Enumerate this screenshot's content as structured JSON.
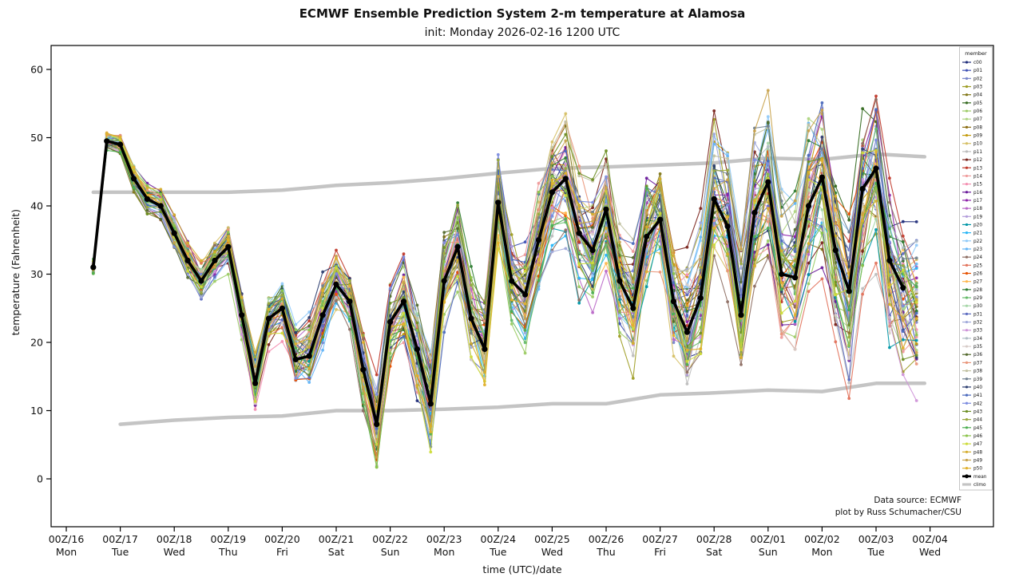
{
  "chart_data": {
    "type": "line",
    "title": "ECMWF Ensemble Prediction System 2-m temperature at Alamosa",
    "subtitle": "init: Monday 2026-02-16 1200 UTC",
    "xlabel": "time (UTC)/date",
    "ylabel": "temperature (Fahrenheit)",
    "ylim": [
      -7,
      63
    ],
    "yticks": [
      0,
      10,
      20,
      30,
      40,
      50,
      60
    ],
    "xticks": [
      {
        "utc": "00Z/16",
        "day": "Mon"
      },
      {
        "utc": "00Z/17",
        "day": "Tue"
      },
      {
        "utc": "00Z/18",
        "day": "Wed"
      },
      {
        "utc": "00Z/19",
        "day": "Thu"
      },
      {
        "utc": "00Z/20",
        "day": "Fri"
      },
      {
        "utc": "00Z/21",
        "day": "Sat"
      },
      {
        "utc": "00Z/22",
        "day": "Sun"
      },
      {
        "utc": "00Z/23",
        "day": "Mon"
      },
      {
        "utc": "00Z/24",
        "day": "Tue"
      },
      {
        "utc": "00Z/25",
        "day": "Wed"
      },
      {
        "utc": "00Z/26",
        "day": "Thu"
      },
      {
        "utc": "00Z/27",
        "day": "Fri"
      },
      {
        "utc": "00Z/28",
        "day": "Sat"
      },
      {
        "utc": "00Z/01",
        "day": "Sun"
      },
      {
        "utc": "00Z/02",
        "day": "Mon"
      },
      {
        "utc": "00Z/03",
        "day": "Tue"
      },
      {
        "utc": "00Z/04",
        "day": "Wed"
      }
    ],
    "legend": {
      "title": "member",
      "mean_label": "mean",
      "climo_label": "climo"
    },
    "annotation": [
      "Data source: ECMWF",
      "plot by Russ Schumacher/CSU"
    ],
    "mean": {
      "color": "#000000",
      "points": [
        [
          0.5,
          31
        ],
        [
          0.75,
          49.5
        ],
        [
          1,
          49
        ],
        [
          1.25,
          44
        ],
        [
          1.5,
          41
        ],
        [
          1.75,
          40
        ],
        [
          2,
          36
        ],
        [
          2.25,
          32
        ],
        [
          2.5,
          29
        ],
        [
          2.75,
          32
        ],
        [
          3,
          34
        ],
        [
          3.25,
          24
        ],
        [
          3.5,
          14
        ],
        [
          3.75,
          23.5
        ],
        [
          4,
          25
        ],
        [
          4.25,
          17.5
        ],
        [
          4.5,
          18
        ],
        [
          4.75,
          24
        ],
        [
          5,
          28.5
        ],
        [
          5.25,
          26
        ],
        [
          5.5,
          16
        ],
        [
          5.75,
          8
        ],
        [
          6,
          23
        ],
        [
          6.25,
          26
        ],
        [
          6.5,
          19
        ],
        [
          6.75,
          11
        ],
        [
          7,
          29
        ],
        [
          7.25,
          34
        ],
        [
          7.5,
          23.5
        ],
        [
          7.75,
          19
        ],
        [
          8,
          40.5
        ],
        [
          8.25,
          29
        ],
        [
          8.5,
          27
        ],
        [
          8.75,
          35
        ],
        [
          9,
          42
        ],
        [
          9.25,
          44
        ],
        [
          9.5,
          36
        ],
        [
          9.75,
          33.5
        ],
        [
          10,
          39.5
        ],
        [
          10.25,
          29
        ],
        [
          10.5,
          25
        ],
        [
          10.75,
          35.5
        ],
        [
          11,
          38
        ],
        [
          11.25,
          26
        ],
        [
          11.5,
          21.5
        ],
        [
          11.75,
          26.5
        ],
        [
          12,
          41
        ],
        [
          12.25,
          37
        ],
        [
          12.5,
          24
        ],
        [
          12.75,
          39
        ],
        [
          13,
          43.5
        ],
        [
          13.25,
          30
        ],
        [
          13.5,
          29.5
        ],
        [
          13.75,
          40
        ],
        [
          14,
          44.2
        ],
        [
          14.25,
          33.5
        ],
        [
          14.5,
          27.5
        ],
        [
          14.75,
          42.5
        ],
        [
          15,
          45.5
        ],
        [
          15.25,
          32
        ],
        [
          15.5,
          28
        ]
      ]
    },
    "climo": {
      "color": "#c4c4c4",
      "upper": [
        [
          0.5,
          42
        ],
        [
          1,
          42
        ],
        [
          2,
          42
        ],
        [
          3,
          42
        ],
        [
          4,
          42.3
        ],
        [
          5,
          43
        ],
        [
          6,
          43.4
        ],
        [
          7,
          44
        ],
        [
          8,
          44.8
        ],
        [
          9,
          45.5
        ],
        [
          10,
          45.7
        ],
        [
          11,
          46
        ],
        [
          12,
          46.3
        ],
        [
          13,
          47
        ],
        [
          14,
          46.8
        ],
        [
          15,
          47.6
        ],
        [
          15.9,
          47.2
        ]
      ],
      "lower": [
        [
          1,
          8
        ],
        [
          2,
          8.6
        ],
        [
          3,
          9
        ],
        [
          4,
          9.2
        ],
        [
          5,
          10
        ],
        [
          6,
          10
        ],
        [
          7,
          10.2
        ],
        [
          8,
          10.5
        ],
        [
          9,
          11
        ],
        [
          10,
          11
        ],
        [
          11,
          12.3
        ],
        [
          12,
          12.6
        ],
        [
          13,
          13
        ],
        [
          14,
          12.8
        ],
        [
          15,
          14
        ],
        [
          15.9,
          14
        ]
      ]
    },
    "members": {
      "names": [
        "c00",
        "p01",
        "p02",
        "p03",
        "p04",
        "p05",
        "p06",
        "p07",
        "p08",
        "p09",
        "p10",
        "p11",
        "p12",
        "p13",
        "p14",
        "p15",
        "p16",
        "p17",
        "p18",
        "p19",
        "p20",
        "p21",
        "p22",
        "p23",
        "p24",
        "p25",
        "p26",
        "p27",
        "p28",
        "p29",
        "p30",
        "p31",
        "p32",
        "p33",
        "p34",
        "p35",
        "p36",
        "p37",
        "p38",
        "p39",
        "p40",
        "p41",
        "p42",
        "p43",
        "p44",
        "p45",
        "p46",
        "p47",
        "p48",
        "p49",
        "p50"
      ],
      "colors": [
        "#1f2d7a",
        "#3f51b5",
        "#7986cb",
        "#9e9d24",
        "#827717",
        "#33691e",
        "#9ccc65",
        "#aed581",
        "#8d6e13",
        "#c49b0b",
        "#d6c066",
        "#bdbdbd",
        "#7b241c",
        "#c0392b",
        "#ef9a9a",
        "#f48fb1",
        "#6a1b9a",
        "#8e24aa",
        "#ba68c8",
        "#b39ddb",
        "#0097a7",
        "#29b6f6",
        "#90caf9",
        "#64b5f6",
        "#8d6e63",
        "#e2725b",
        "#e65100",
        "#ffb74d",
        "#2e7d32",
        "#66bb6a",
        "#a5d6a7",
        "#5c6bc0",
        "#9fa8da",
        "#ce93d8",
        "#b0bec5",
        "#d7ccc8",
        "#556b2f",
        "#e9967a",
        "#c2c2a3",
        "#708090",
        "#2c3e70",
        "#4a69bd",
        "#7c8ce0",
        "#6b8e23",
        "#99a83d",
        "#4caf50",
        "#8bc34a",
        "#cddc39",
        "#d4ac2b",
        "#c8a24b",
        "#e1b12c"
      ]
    },
    "spread": {
      "start": 0.9,
      "growth": 0.72,
      "max": 11.5
    }
  }
}
